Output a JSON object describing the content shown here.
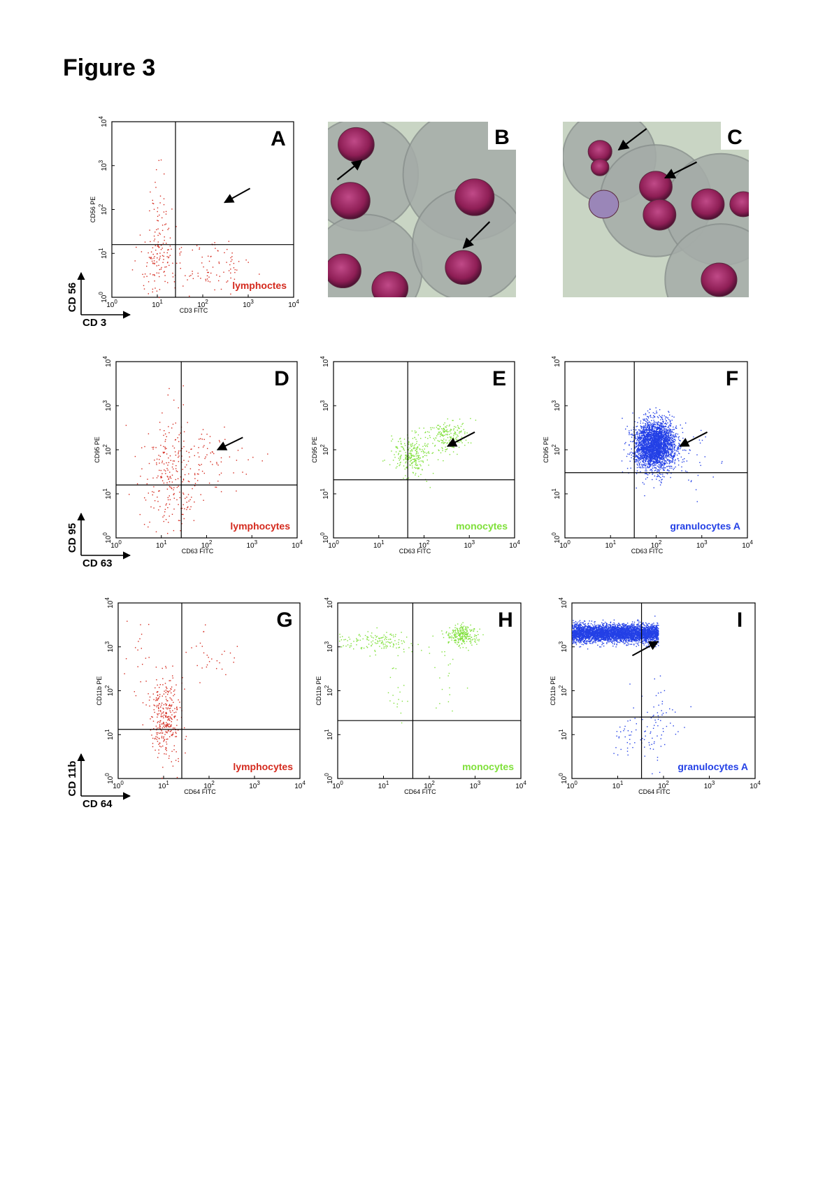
{
  "figure_title": "Figure 3",
  "tick_base": "10",
  "tick_exponents": [
    "0",
    "1",
    "2",
    "3",
    "4"
  ],
  "panels": [
    {
      "letter": "A",
      "type": "scatter",
      "x_label": "CD3 FITC",
      "y_label": "CD56 PE",
      "population": "lymphoctes",
      "color": "#d42a1e"
    },
    {
      "letter": "B",
      "type": "image"
    },
    {
      "letter": "C",
      "type": "image"
    },
    {
      "letter": "D",
      "type": "scatter",
      "x_label": "CD63 FITC",
      "y_label": "CD95 PE",
      "population": "lymphocytes",
      "color": "#d42a1e"
    },
    {
      "letter": "E",
      "type": "scatter",
      "x_label": "CD63 FITC",
      "y_label": "CD95 PE",
      "population": "monocytes",
      "color": "#7fe03a"
    },
    {
      "letter": "F",
      "type": "scatter",
      "x_label": "CD63 FITC",
      "y_label": "CD95 PE",
      "population": "granulocytes  A",
      "color": "#2340e6"
    },
    {
      "letter": "G",
      "type": "scatter",
      "x_label": "CD64 FITC",
      "y_label": "CD11b PE",
      "population": "lymphocytes",
      "color": "#d42a1e"
    },
    {
      "letter": "H",
      "type": "scatter",
      "x_label": "CD64 FITC",
      "y_label": "CD11b PE",
      "population": "monocytes",
      "color": "#7fe03a"
    },
    {
      "letter": "I",
      "type": "scatter",
      "x_label": "CD64 FITC",
      "y_label": "CD11b PE",
      "population": "granulocytes  A",
      "color": "#2340e6"
    }
  ],
  "row_markers": [
    {
      "y": "CD 56",
      "x": "CD 3"
    },
    {
      "y": "CD 95",
      "x": "CD 63"
    },
    {
      "y": "CD 11b",
      "x": "CD 64"
    }
  ]
}
